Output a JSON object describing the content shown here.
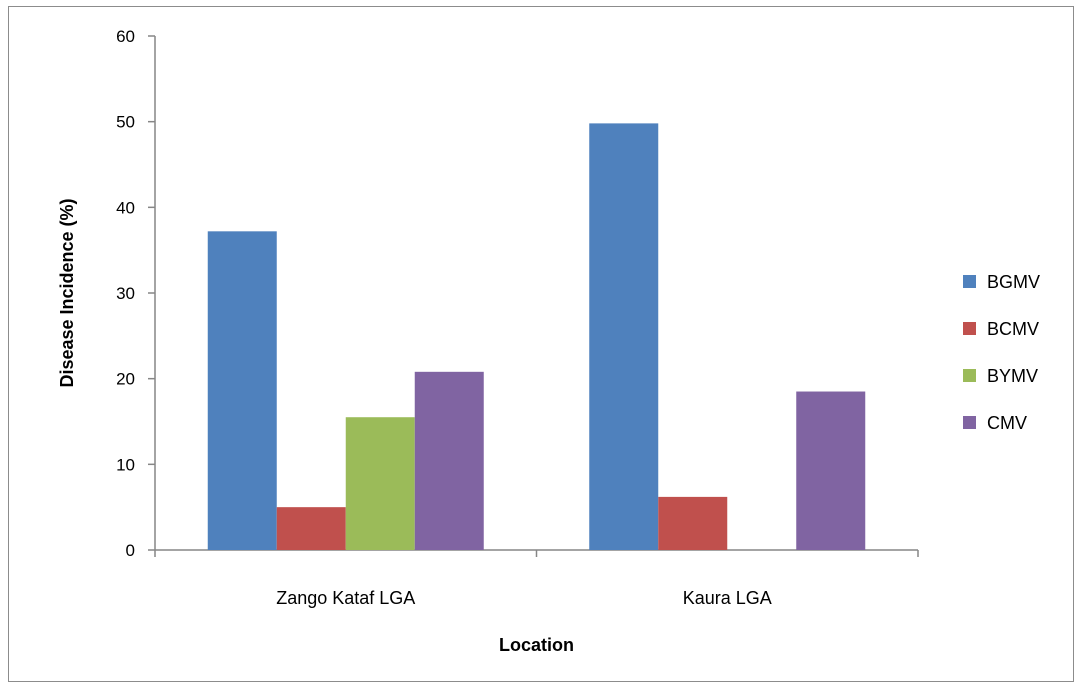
{
  "chart_data": {
    "type": "bar",
    "categories": [
      "Zango Kataf LGA",
      "Kaura LGA"
    ],
    "series": [
      {
        "name": "BGMV",
        "values": [
          37.2,
          49.8
        ],
        "color": "#4f81bd"
      },
      {
        "name": "BCMV",
        "values": [
          5.0,
          6.2
        ],
        "color": "#c0504d"
      },
      {
        "name": "BYMV",
        "values": [
          15.5,
          0
        ],
        "color": "#9bbb59"
      },
      {
        "name": "CMV",
        "values": [
          20.8,
          18.5
        ],
        "color": "#8064a2"
      }
    ],
    "xlabel": "Location",
    "ylabel": "Disease Incidence (%)",
    "ylim": [
      0,
      60
    ],
    "yticks": [
      0,
      10,
      20,
      30,
      40,
      50,
      60
    ],
    "grid": false,
    "legend": "right"
  }
}
